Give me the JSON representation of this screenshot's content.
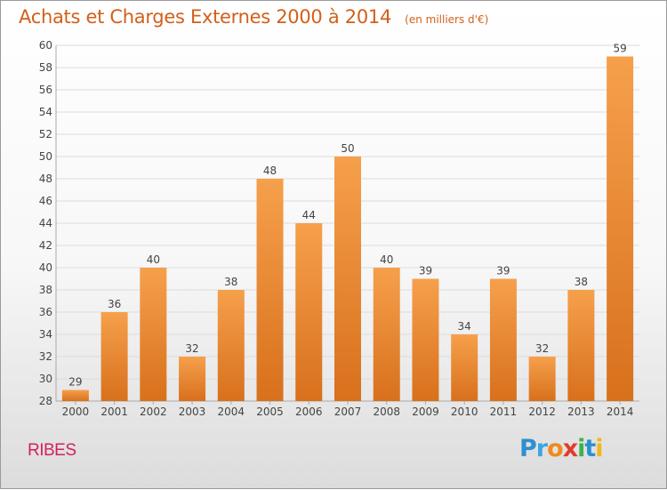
{
  "title": "Achats et Charges Externes 2000 à 2014",
  "subtitle": "(en milliers d'€)",
  "commune": "RIBES",
  "logo": {
    "text": "Proxiti",
    "letters": [
      {
        "ch": "P",
        "color": "#2e8fd0"
      },
      {
        "ch": "r",
        "color": "#3da6e0"
      },
      {
        "ch": "o",
        "color": "#f08a1c"
      },
      {
        "ch": "x",
        "color": "#e03c2c"
      },
      {
        "ch": "i",
        "color": "#3db24a"
      },
      {
        "ch": "t",
        "color": "#2e8fd0"
      },
      {
        "ch": "i",
        "color": "#f0b71c"
      }
    ]
  },
  "colors": {
    "bar_top": "#f6a04c",
    "bar_bottom": "#d8701c",
    "title": "#d2601a",
    "commune": "#d2225a",
    "grid": "#dcdcdc"
  },
  "chart_data": {
    "type": "bar",
    "categories": [
      "2000",
      "2001",
      "2002",
      "2003",
      "2004",
      "2005",
      "2006",
      "2007",
      "2008",
      "2009",
      "2010",
      "2011",
      "2012",
      "2013",
      "2014"
    ],
    "values": [
      29,
      36,
      40,
      32,
      38,
      48,
      44,
      50,
      40,
      39,
      34,
      39,
      32,
      38,
      59
    ],
    "ylim": [
      28,
      60
    ],
    "yticks": [
      28,
      30,
      32,
      34,
      36,
      38,
      40,
      42,
      44,
      46,
      48,
      50,
      52,
      54,
      56,
      58,
      60
    ],
    "grid": "horizontal"
  }
}
